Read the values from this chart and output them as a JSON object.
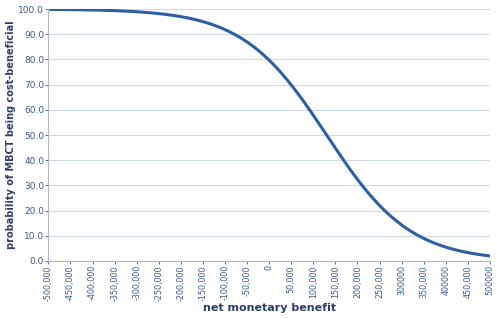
{
  "x_min": -500000,
  "x_max": 500000,
  "y_min": 0.0,
  "y_max": 100.0,
  "y_ticks": [
    0.0,
    10.0,
    20.0,
    30.0,
    40.0,
    50.0,
    60.0,
    70.0,
    80.0,
    90.0,
    100.0
  ],
  "x_ticks": [
    -500000,
    -450000,
    -400000,
    -350000,
    -300000,
    -250000,
    -200000,
    -150000,
    -100000,
    -50000,
    0,
    50000,
    100000,
    150000,
    200000,
    250000,
    300000,
    350000,
    400000,
    450000,
    500000
  ],
  "x_tick_labels": [
    "-500,000",
    "-450,000",
    "-400,000",
    "-350,000",
    "-300,000",
    "-250,000",
    "-200,000",
    "-150,000",
    "-100,000",
    "-50,000",
    "0",
    "50,000",
    "100,000",
    "150,000",
    "200,000",
    "250,000",
    "300000",
    "350,000",
    "400000",
    "450,000",
    "500000"
  ],
  "xlabel": "net monetary benefit",
  "ylabel": "probability of MBCT being cost-beneficial",
  "line_color": "#2e5fa3",
  "line_width": 2.2,
  "background_color": "#ffffff",
  "grid_color": "#d0d8e8",
  "logistic_midpoint": 130000,
  "logistic_scale": 95000,
  "figwidth": 5.0,
  "figheight": 3.19,
  "dpi": 100
}
